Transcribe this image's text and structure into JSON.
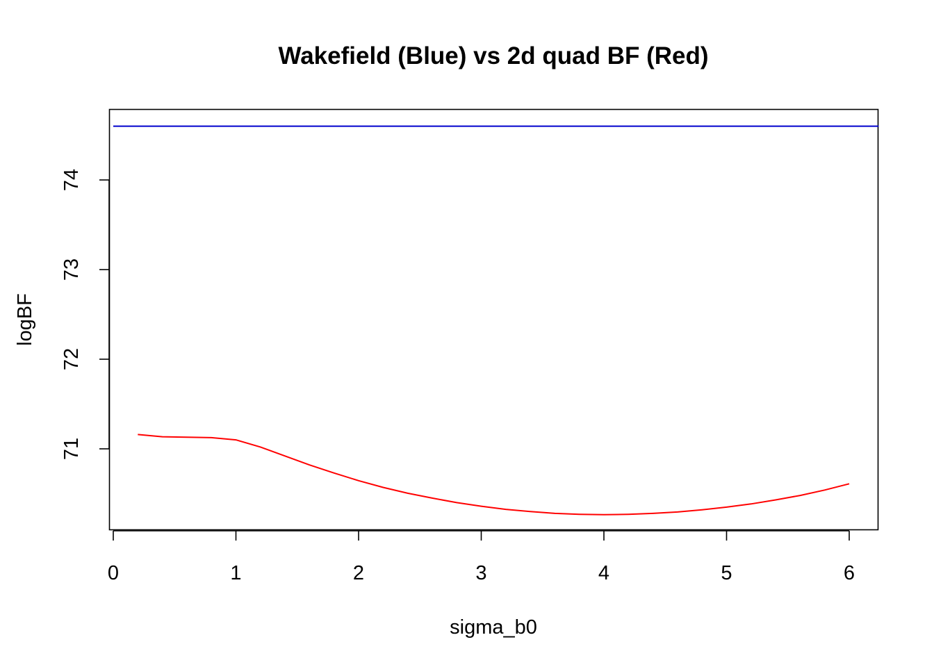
{
  "chart_data": {
    "type": "line",
    "title": "Wakefield (Blue) vs 2d quad BF (Red)",
    "xlabel": "sigma_b0",
    "ylabel": "logBF",
    "xlim": [
      0,
      6
    ],
    "ylim": [
      70.25,
      74.6
    ],
    "x_ticks": [
      0,
      1,
      2,
      3,
      4,
      5,
      6
    ],
    "y_ticks": [
      71,
      72,
      73,
      74
    ],
    "grid": false,
    "legend": "none",
    "series": [
      {
        "color": "#0000cd",
        "style": "hline",
        "x": [
          0,
          6.24
        ],
        "y": [
          74.6,
          74.6
        ]
      },
      {
        "color": "#ff0000",
        "style": "line",
        "x": [
          0.2,
          0.4,
          0.6,
          0.8,
          1.0,
          1.2,
          1.4,
          1.6,
          1.8,
          2.0,
          2.2,
          2.4,
          2.6,
          2.8,
          3.0,
          3.2,
          3.4,
          3.6,
          3.8,
          4.0,
          4.2,
          4.4,
          4.6,
          4.8,
          5.0,
          5.2,
          5.4,
          5.6,
          5.8,
          6.0
        ],
        "y": [
          71.16,
          71.135,
          71.13,
          71.125,
          71.1,
          71.02,
          70.92,
          70.82,
          70.73,
          70.645,
          70.57,
          70.505,
          70.45,
          70.4,
          70.36,
          70.325,
          70.3,
          70.28,
          70.27,
          70.265,
          70.27,
          70.28,
          70.295,
          70.32,
          70.35,
          70.385,
          70.43,
          70.48,
          70.54,
          70.61
        ]
      }
    ]
  }
}
